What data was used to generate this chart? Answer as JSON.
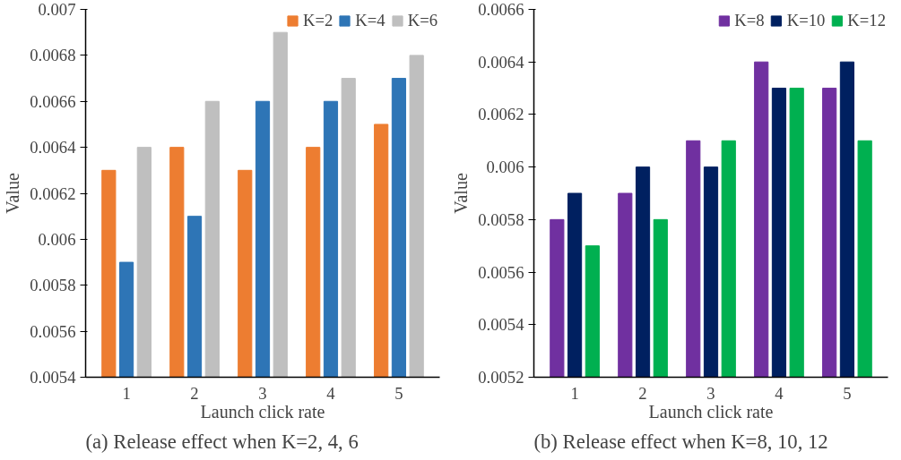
{
  "chart_data": [
    {
      "type": "bar",
      "categories": [
        "1",
        "2",
        "3",
        "4",
        "5"
      ],
      "xlabel": "Launch click rate",
      "ylabel": "Value",
      "ylim": [
        0.0054,
        0.007
      ],
      "yticks": [
        0.0054,
        0.0056,
        0.0058,
        0.006,
        0.0062,
        0.0064,
        0.0066,
        0.0068,
        0.007
      ],
      "legend": "top right",
      "grid": false,
      "annotations": [
        "(a) Release effect when K=2, 4, 6"
      ],
      "series": [
        {
          "name": "K=2",
          "color": "#ed7d31",
          "values": [
            0.0063,
            0.0064,
            0.0063,
            0.0064,
            0.0065
          ]
        },
        {
          "name": "K=4",
          "color": "#2e75b6",
          "values": [
            0.0059,
            0.0061,
            0.0066,
            0.0066,
            0.0067
          ]
        },
        {
          "name": "K=6",
          "color": "#bfbfbf",
          "values": [
            0.0064,
            0.0066,
            0.0069,
            0.0067,
            0.0068
          ]
        }
      ]
    },
    {
      "type": "bar",
      "categories": [
        "1",
        "2",
        "3",
        "4",
        "5"
      ],
      "xlabel": "Launch click rate",
      "ylabel": "Value",
      "ylim": [
        0.0052,
        0.0066
      ],
      "yticks": [
        0.0052,
        0.0054,
        0.0056,
        0.0058,
        0.006,
        0.0062,
        0.0064,
        0.0066
      ],
      "legend": "top right",
      "grid": false,
      "annotations": [
        "(b) Release effect when K=8, 10, 12"
      ],
      "series": [
        {
          "name": "K=8",
          "color": "#7030a0",
          "values": [
            0.0058,
            0.0059,
            0.0061,
            0.0064,
            0.0063
          ]
        },
        {
          "name": "K=10",
          "color": "#002060",
          "values": [
            0.0059,
            0.006,
            0.006,
            0.0063,
            0.0064
          ]
        },
        {
          "name": "K=12",
          "color": "#00b050",
          "values": [
            0.0057,
            0.0058,
            0.0061,
            0.0063,
            0.0061
          ]
        }
      ]
    }
  ]
}
